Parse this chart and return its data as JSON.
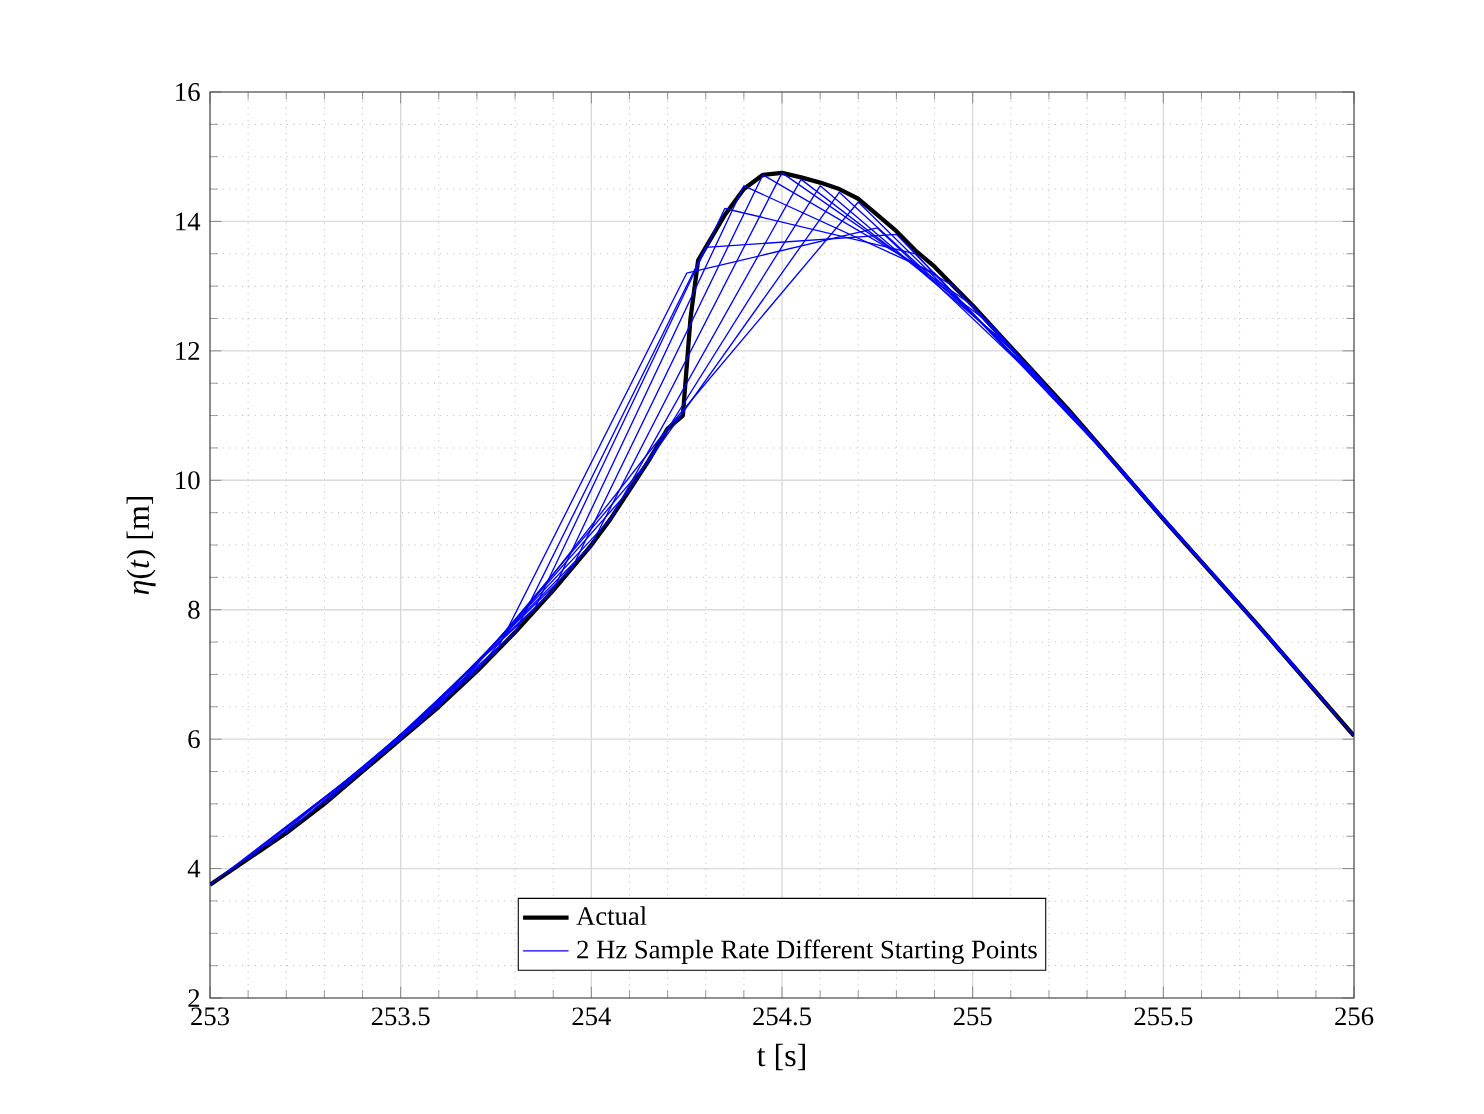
{
  "chart_data": {
    "type": "line",
    "xlabel": "t [s]",
    "ylabel": "*η*(*t*) [m]",
    "xlim": [
      253,
      256
    ],
    "ylim": [
      2,
      16
    ],
    "xticks": [
      253,
      253.5,
      254,
      254.5,
      255,
      255.5,
      256
    ],
    "yticks": [
      2,
      4,
      6,
      8,
      10,
      12,
      14,
      16
    ],
    "grid": true,
    "legend": "bottom",
    "series": [
      {
        "name": "Actual",
        "color": "#000000",
        "x": [
          253.0,
          253.1,
          253.2,
          253.3,
          253.4,
          253.5,
          253.6,
          253.7,
          253.8,
          253.9,
          254.0,
          254.05,
          254.1,
          254.15,
          254.2,
          254.24,
          254.26,
          254.28,
          254.35,
          254.4,
          254.45,
          254.5,
          254.55,
          254.6,
          254.65,
          254.7,
          254.75,
          254.8,
          254.85,
          254.9,
          254.95,
          255.0,
          255.25,
          255.5,
          255.75,
          256.0
        ],
        "values": [
          3.75,
          4.15,
          4.55,
          5.0,
          5.5,
          6.0,
          6.5,
          7.05,
          7.65,
          8.3,
          9.0,
          9.4,
          9.85,
          10.3,
          10.8,
          11.0,
          12.5,
          13.4,
          14.1,
          14.5,
          14.72,
          14.75,
          14.68,
          14.6,
          14.5,
          14.35,
          14.1,
          13.85,
          13.55,
          13.3,
          13.0,
          12.7,
          11.1,
          9.4,
          7.75,
          6.05
        ]
      },
      {
        "color": "#0000ff",
        "x": [
          253.0,
          253.5,
          254.0,
          254.5,
          255.0,
          255.5,
          256.0
        ],
        "values": [
          3.75,
          6.0,
          9.0,
          14.75,
          12.7,
          9.4,
          6.05
        ]
      },
      {
        "name": "2 Hz Sample Rate Different Starting Points",
        "color": "#0000ff",
        "x": [
          253.05,
          253.55,
          254.05,
          254.55,
          255.05,
          255.55
        ],
        "values": [
          3.95,
          6.25,
          9.4,
          14.65,
          12.4,
          9.05
        ]
      },
      {
        "color": "#0000ff",
        "x": [
          253.1,
          253.6,
          254.1,
          254.6,
          255.1,
          255.6
        ],
        "values": [
          4.15,
          6.5,
          9.85,
          14.55,
          12.05,
          8.75
        ]
      },
      {
        "color": "#0000ff",
        "x": [
          253.15,
          253.65,
          254.15,
          254.65,
          255.15,
          255.65
        ],
        "values": [
          4.35,
          6.8,
          10.3,
          14.45,
          11.75,
          8.4
        ]
      },
      {
        "color": "#0000ff",
        "x": [
          253.2,
          253.7,
          254.2,
          254.7,
          255.2,
          255.7
        ],
        "values": [
          4.55,
          7.05,
          10.8,
          14.3,
          11.4,
          8.1
        ]
      },
      {
        "color": "#0000ff",
        "x": [
          253.25,
          253.75,
          254.25,
          254.75,
          255.25,
          255.75
        ],
        "values": [
          4.8,
          7.35,
          13.2,
          13.9,
          11.1,
          7.75
        ]
      },
      {
        "color": "#0000ff",
        "x": [
          253.3,
          253.8,
          254.3,
          254.8,
          255.3,
          255.8
        ],
        "values": [
          5.0,
          7.65,
          13.6,
          13.8,
          10.75,
          7.4
        ]
      },
      {
        "color": "#0000ff",
        "x": [
          253.35,
          253.85,
          254.35,
          254.85,
          255.35,
          255.85
        ],
        "values": [
          5.25,
          8.0,
          14.2,
          13.5,
          10.4,
          7.1
        ]
      },
      {
        "color": "#0000ff",
        "x": [
          253.4,
          253.9,
          254.4,
          254.9,
          255.4,
          255.9
        ],
        "values": [
          5.5,
          8.3,
          14.55,
          13.2,
          10.1,
          6.75
        ]
      },
      {
        "color": "#0000ff",
        "x": [
          253.45,
          253.95,
          254.45,
          254.95,
          255.45,
          255.95
        ],
        "values": [
          5.75,
          8.65,
          14.72,
          13.0,
          9.75,
          6.4
        ]
      }
    ]
  }
}
